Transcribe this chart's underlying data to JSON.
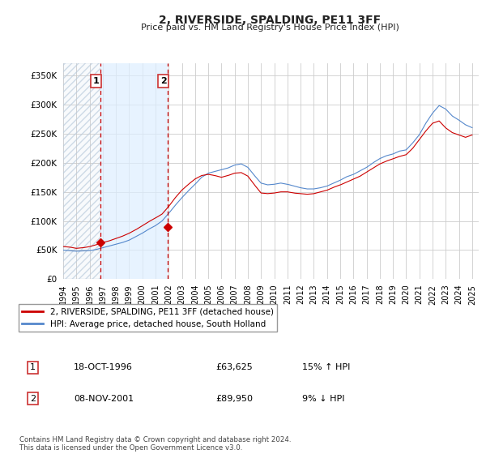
{
  "title": "2, RIVERSIDE, SPALDING, PE11 3FF",
  "subtitle": "Price paid vs. HM Land Registry's House Price Index (HPI)",
  "ytick_values": [
    0,
    50000,
    100000,
    150000,
    200000,
    250000,
    300000,
    350000
  ],
  "ylim": [
    0,
    370000
  ],
  "xlim_start": 1994.0,
  "xlim_end": 2025.5,
  "hatch_x1": 1994.0,
  "hatch_x2": 1996.8,
  "shade_x1": 1996.8,
  "shade_x2": 2001.9,
  "vline1_x": 1996.8,
  "vline2_x": 2001.9,
  "sale1_x": 1996.8,
  "sale1_y": 63625,
  "sale2_x": 2001.9,
  "sale2_y": 89950,
  "sale_color": "#cc0000",
  "hpi_color": "#5588cc",
  "shade_color": "#ddeeff",
  "hatch_color": "#cccccc",
  "grid_color": "#cccccc",
  "background_color": "#ffffff",
  "legend_label_sale": "2, RIVERSIDE, SPALDING, PE11 3FF (detached house)",
  "legend_label_hpi": "HPI: Average price, detached house, South Holland",
  "table_row1": [
    "1",
    "18-OCT-1996",
    "£63,625",
    "15% ↑ HPI"
  ],
  "table_row2": [
    "2",
    "08-NOV-2001",
    "£89,950",
    "9% ↓ HPI"
  ],
  "footnote": "Contains HM Land Registry data © Crown copyright and database right 2024.\nThis data is licensed under the Open Government Licence v3.0.",
  "xtick_years": [
    1994,
    1995,
    1996,
    1997,
    1998,
    1999,
    2000,
    2001,
    2002,
    2003,
    2004,
    2005,
    2006,
    2007,
    2008,
    2009,
    2010,
    2011,
    2012,
    2013,
    2014,
    2015,
    2016,
    2017,
    2018,
    2019,
    2020,
    2021,
    2022,
    2023,
    2024,
    2025
  ]
}
